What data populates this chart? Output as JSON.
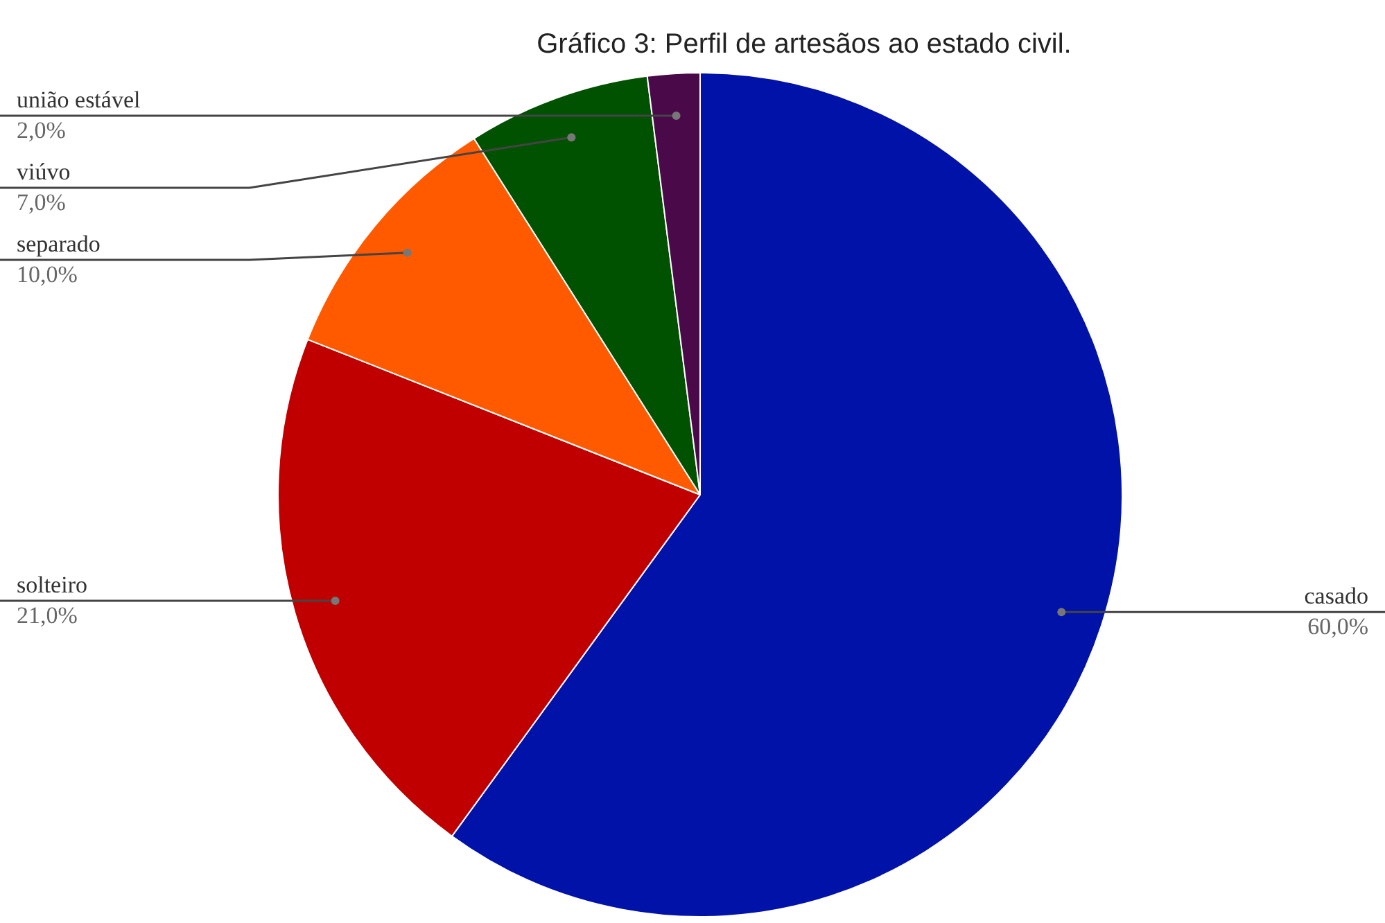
{
  "chart_data": {
    "type": "pie",
    "title": "Gráfico 3: Perfil de artesãos ao estado civil.",
    "categories": [
      "casado",
      "solteiro",
      "separado",
      "viúvo",
      "união estável"
    ],
    "values": [
      60,
      21,
      10,
      7,
      2
    ],
    "value_labels": [
      "60,0%",
      "21,0%",
      "10,0%",
      "7,0%",
      "2,0%"
    ],
    "colors": [
      "#0012a8",
      "#c00000",
      "#ff5a00",
      "#005200",
      "#4a0a4a"
    ]
  }
}
